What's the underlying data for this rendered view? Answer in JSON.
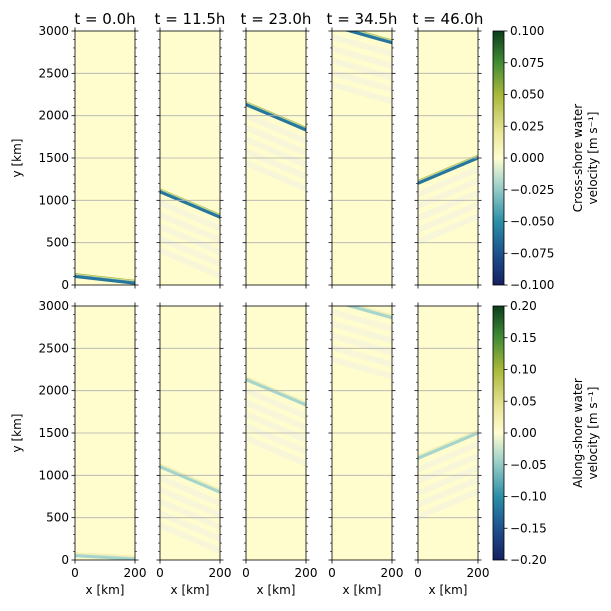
{
  "chart_data": {
    "type": "heatmap",
    "time_labels": [
      "t = 0.0h",
      "t = 11.5h",
      "t = 23.0h",
      "t = 34.5h",
      "t = 46.0h"
    ],
    "times_h": [
      0.0,
      11.5,
      23.0,
      34.5,
      46.0
    ],
    "xlabel": "x [km]",
    "ylabel": "y [km]",
    "xlim": [
      0,
      200
    ],
    "ylim": [
      0,
      3000
    ],
    "x_ticks": [
      0,
      200
    ],
    "y_ticks": [
      0,
      500,
      1000,
      1500,
      2000,
      2500,
      3000
    ],
    "grid": "horizontal",
    "background_color": "#fffdcd",
    "rows": [
      {
        "variable": "Cross-shore water velocity",
        "colorbar_label_lines": [
          "Cross-shore water",
          "velocity [m s⁻¹]"
        ],
        "clim": [
          -0.1,
          0.1
        ],
        "colorbar_ticks": [
          "0.100",
          "0.075",
          "0.050",
          "0.025",
          "0.000",
          "−0.025",
          "−0.050",
          "−0.075",
          "−0.100"
        ],
        "front_amplitude": 0.06,
        "fronts": [
          {
            "x": [
              0,
              200
            ],
            "y": [
              110,
              30
            ]
          },
          {
            "x": [
              0,
              200
            ],
            "y": [
              1110,
              810
            ]
          },
          {
            "x": [
              0,
              200
            ],
            "y": [
              2140,
              1840
            ]
          },
          {
            "x": [
              0,
              200
            ],
            "y": [
              3070,
              2870
            ]
          },
          {
            "x": [
              0,
              200
            ],
            "y": [
              1210,
              1510
            ]
          }
        ]
      },
      {
        "variable": "Along-shore water velocity",
        "colorbar_label_lines": [
          "Along-shore water",
          "velocity [m s⁻¹]"
        ],
        "clim": [
          -0.2,
          0.2
        ],
        "colorbar_ticks": [
          "0.20",
          "0.15",
          "0.10",
          "0.05",
          "0.00",
          "−0.05",
          "−0.10",
          "−0.15",
          "−0.20"
        ],
        "front_amplitude": 0.04,
        "fronts": [
          {
            "x": [
              0,
              200
            ],
            "y": [
              60,
              20
            ]
          },
          {
            "x": [
              0,
              200
            ],
            "y": [
              1110,
              810
            ]
          },
          {
            "x": [
              0,
              200
            ],
            "y": [
              2140,
              1840
            ]
          },
          {
            "x": [
              0,
              200
            ],
            "y": [
              3070,
              2870
            ]
          },
          {
            "x": [
              0,
              200
            ],
            "y": [
              1210,
              1510
            ]
          }
        ]
      }
    ]
  }
}
